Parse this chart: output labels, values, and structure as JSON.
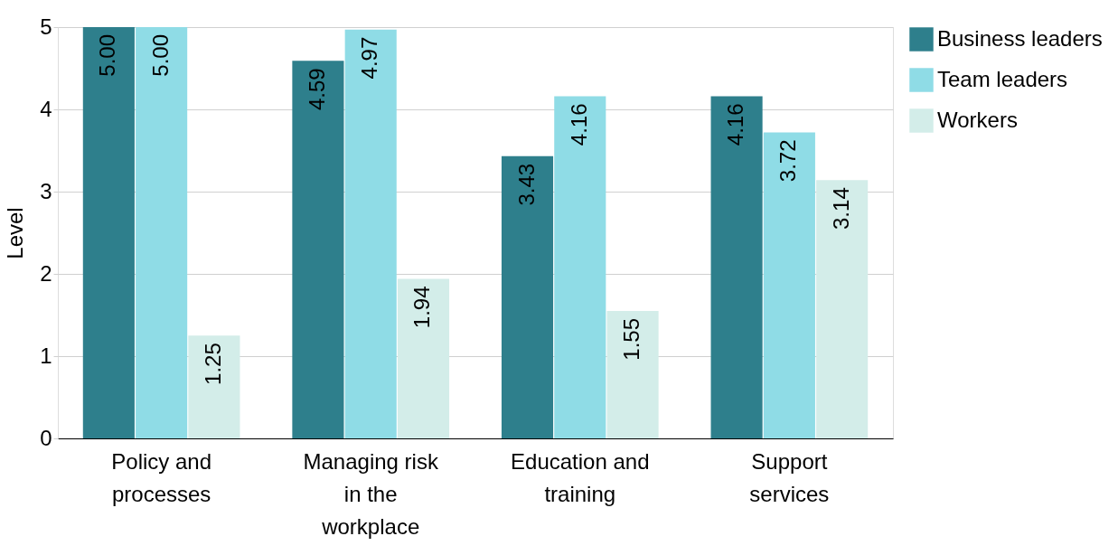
{
  "chart_data": {
    "type": "bar",
    "ylabel": "Level",
    "categories": [
      "Policy and processes",
      "Managing risk in the workplace",
      "Education and training",
      "Support services"
    ],
    "series": [
      {
        "name": "Business leaders",
        "color": "#2e7f8c",
        "values": [
          5.0,
          4.59,
          3.43,
          4.16
        ],
        "value_labels": [
          "5.00",
          "4.59",
          "3.43",
          "4.16"
        ]
      },
      {
        "name": "Team leaders",
        "color": "#8fdce6",
        "values": [
          5.0,
          4.97,
          4.16,
          3.72
        ],
        "value_labels": [
          "5.00",
          "4.97",
          "4.16",
          "3.72"
        ]
      },
      {
        "name": "Workers",
        "color": "#d3ede9",
        "values": [
          1.25,
          1.94,
          1.55,
          3.14
        ],
        "value_labels": [
          "1.25",
          "1.94",
          "1.55",
          "3.14"
        ]
      }
    ],
    "ylim": [
      0,
      5
    ],
    "yticks": [
      0,
      1,
      2,
      3,
      4,
      5
    ],
    "grid": "y",
    "legend": "right"
  }
}
